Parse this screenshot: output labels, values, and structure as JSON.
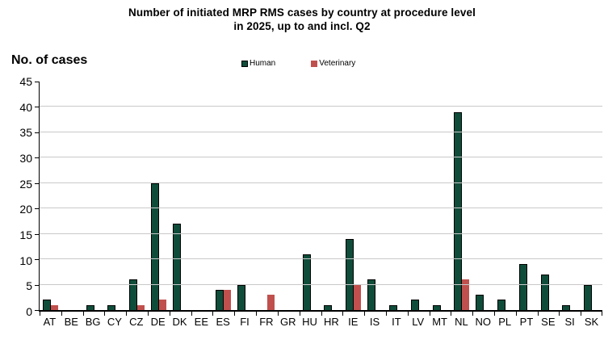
{
  "title": {
    "line1": "Number of initiated MRP RMS cases by country at procedure level",
    "line2": "in 2025, up to and incl. Q2"
  },
  "y_axis_title": "No. of cases",
  "colors": {
    "human": "#0f4d3a",
    "veterinary": "#c0504d",
    "gridline": "#c9c9c9",
    "axis": "#000000"
  },
  "legend": [
    {
      "label": "Human",
      "color": "#0f4d3a",
      "bordered": true
    },
    {
      "label": "Veterinary",
      "color": "#c0504d",
      "bordered": false
    }
  ],
  "chart_data": {
    "type": "bar",
    "title": "Number of initiated MRP RMS cases by country at procedure level in 2025, up to and incl. Q2",
    "xlabel": "",
    "ylabel": "No. of cases",
    "ylim": [
      0,
      45
    ],
    "yticks": [
      0,
      5,
      10,
      15,
      20,
      25,
      30,
      35,
      40,
      45
    ],
    "grid": "horizontal",
    "legend_position": "top",
    "categories": [
      "AT",
      "BE",
      "BG",
      "CY",
      "CZ",
      "DE",
      "DK",
      "EE",
      "ES",
      "FI",
      "FR",
      "GR",
      "HU",
      "HR",
      "IE",
      "IS",
      "IT",
      "LV",
      "MT",
      "NL",
      "NO",
      "PL",
      "PT",
      "SE",
      "SI",
      "SK"
    ],
    "series": [
      {
        "name": "Human",
        "color": "#0f4d3a",
        "values": [
          2,
          0,
          1,
          1,
          6,
          25,
          17,
          0,
          4,
          5,
          0,
          0,
          11,
          1,
          14,
          6,
          1,
          2,
          1,
          39,
          3,
          2,
          9,
          7,
          1,
          5
        ]
      },
      {
        "name": "Veterinary",
        "color": "#c0504d",
        "values": [
          1,
          0,
          0,
          0,
          1,
          2,
          0,
          0,
          4,
          0,
          3,
          0,
          0,
          0,
          5,
          0,
          0,
          0,
          0,
          6,
          0,
          0,
          0,
          0,
          0,
          0
        ]
      }
    ]
  }
}
